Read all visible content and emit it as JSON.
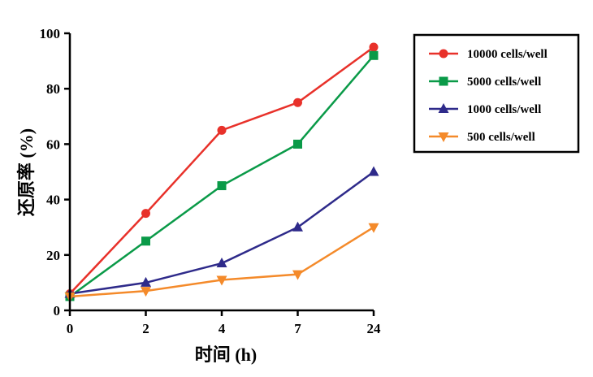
{
  "chart_data": {
    "type": "line",
    "xlabel": "时间 (h)",
    "ylabel": "还原率 (%)",
    "categories": [
      "0",
      "2",
      "4",
      "7",
      "24"
    ],
    "ylim": [
      0,
      100
    ],
    "yticks": [
      0,
      20,
      40,
      60,
      80,
      100
    ],
    "grid": false,
    "legend_position": "top-right",
    "series": [
      {
        "name": "10000 cells/well",
        "color": "#e8312a",
        "marker": "circle",
        "values": [
          6,
          35,
          65,
          75,
          95
        ]
      },
      {
        "name": "5000 cells/well",
        "color": "#0a9a48",
        "marker": "square",
        "values": [
          5,
          25,
          45,
          60,
          92
        ]
      },
      {
        "name": "1000 cells/well",
        "color": "#2e2a8a",
        "marker": "triangle-up",
        "values": [
          6,
          10,
          17,
          30,
          50
        ]
      },
      {
        "name": "500 cells/well",
        "color": "#f48a2a",
        "marker": "triangle-down",
        "values": [
          5,
          7,
          11,
          13,
          30
        ]
      }
    ]
  }
}
